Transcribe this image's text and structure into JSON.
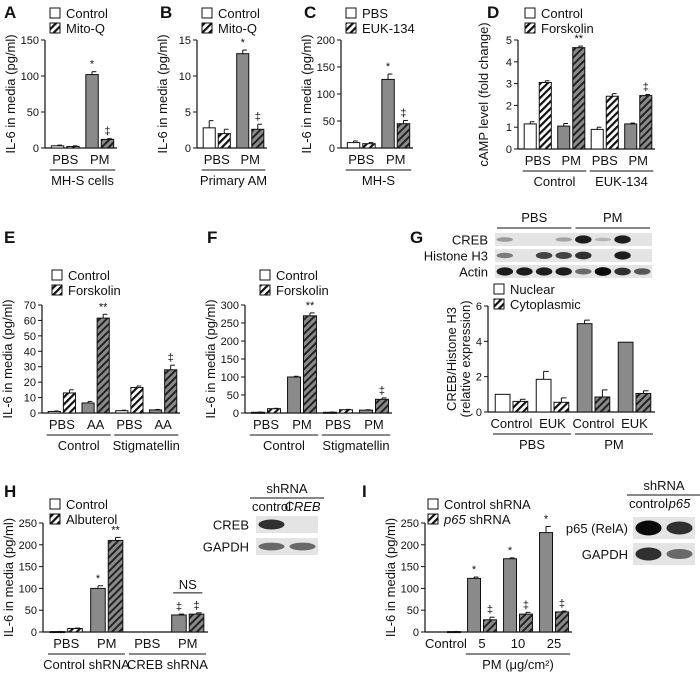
{
  "colors": {
    "gray_bar": "#8a8a8a",
    "white_bar": "#ffffff",
    "ink": "#111111"
  },
  "chart_data": [
    {
      "panel": "A",
      "type": "bar",
      "ylabel": "IL-6 in media (pg/ml)",
      "ylim": [
        0,
        150
      ],
      "yticks": [
        0,
        50,
        100,
        150
      ],
      "legend": [
        {
          "label": "Control",
          "hatch": false
        },
        {
          "label": "Mito-Q",
          "hatch": true
        }
      ],
      "categories": [
        "PBS",
        "PM"
      ],
      "groups": [
        {
          "label": "MH-S cells",
          "from": 0,
          "to": 1
        }
      ],
      "bars": [
        {
          "value": 3,
          "error": 1,
          "fill": "white",
          "hatch": false
        },
        {
          "value": 2,
          "error": 1,
          "fill": "white",
          "hatch": true
        },
        {
          "value": 102,
          "error": 4,
          "fill": "gray",
          "hatch": false,
          "mark": "*"
        },
        {
          "value": 12,
          "error": 1,
          "fill": "gray",
          "hatch": true,
          "mark": "‡"
        }
      ]
    },
    {
      "panel": "B",
      "type": "bar",
      "ylabel": "IL-6 in media (pg/ml)",
      "ylim": [
        0,
        15
      ],
      "yticks": [
        0,
        5,
        10,
        15
      ],
      "legend": [
        {
          "label": "Control",
          "hatch": false
        },
        {
          "label": "Mito-Q",
          "hatch": true
        }
      ],
      "categories": [
        "PBS",
        "PM"
      ],
      "groups": [
        {
          "label": "Primary AM",
          "from": 0,
          "to": 1
        }
      ],
      "bars": [
        {
          "value": 2.8,
          "error": 1.0,
          "fill": "white",
          "hatch": false
        },
        {
          "value": 2.0,
          "error": 0.6,
          "fill": "white",
          "hatch": true
        },
        {
          "value": 13.1,
          "error": 0.5,
          "fill": "gray",
          "hatch": false,
          "mark": "*"
        },
        {
          "value": 2.6,
          "error": 0.7,
          "fill": "gray",
          "hatch": true,
          "mark": "‡"
        }
      ]
    },
    {
      "panel": "C",
      "type": "bar",
      "ylabel": "IL-6 in media (pg/ml)",
      "ylim": [
        0,
        200
      ],
      "yticks": [
        0,
        50,
        100,
        150,
        200
      ],
      "legend": [
        {
          "label": "PBS",
          "hatch": false
        },
        {
          "label": "EUK-134",
          "hatch": true
        }
      ],
      "categories": [
        "PBS",
        "PM"
      ],
      "groups": [
        {
          "label": "MH-S",
          "from": 0,
          "to": 1
        }
      ],
      "bars": [
        {
          "value": 10,
          "error": 3,
          "fill": "white",
          "hatch": false
        },
        {
          "value": 8,
          "error": 2,
          "fill": "white",
          "hatch": true
        },
        {
          "value": 127,
          "error": 10,
          "fill": "gray",
          "hatch": false,
          "mark": "*"
        },
        {
          "value": 45,
          "error": 6,
          "fill": "gray",
          "hatch": true,
          "mark": "‡"
        }
      ]
    },
    {
      "panel": "D",
      "type": "bar",
      "ylabel": "cAMP level (fold change)",
      "ylim": [
        0,
        5
      ],
      "yticks": [
        0,
        1,
        2,
        3,
        4,
        5
      ],
      "legend": [
        {
          "label": "Control",
          "hatch": false
        },
        {
          "label": "Forskolin",
          "hatch": true
        }
      ],
      "categories": [
        "PBS",
        "PM",
        "PBS",
        "PM"
      ],
      "groups": [
        {
          "label": "Control",
          "from": 0,
          "to": 1
        },
        {
          "label": "EUK-134",
          "from": 2,
          "to": 3
        }
      ],
      "bars": [
        {
          "value": 1.15,
          "error": 0.1,
          "fill": "white",
          "hatch": false
        },
        {
          "value": 3.05,
          "error": 0.08,
          "fill": "white",
          "hatch": true
        },
        {
          "value": 1.05,
          "error": 0.12,
          "fill": "gray",
          "hatch": false
        },
        {
          "value": 4.65,
          "error": 0.07,
          "fill": "gray",
          "hatch": true,
          "mark": "**"
        },
        {
          "value": 0.9,
          "error": 0.1,
          "fill": "white",
          "hatch": false
        },
        {
          "value": 2.42,
          "error": 0.12,
          "fill": "white",
          "hatch": true
        },
        {
          "value": 1.15,
          "error": 0.04,
          "fill": "gray",
          "hatch": false
        },
        {
          "value": 2.45,
          "error": 0.05,
          "fill": "gray",
          "hatch": true,
          "mark": "‡"
        }
      ]
    },
    {
      "panel": "E",
      "type": "bar",
      "ylabel": "IL-6 in media (pg/ml)",
      "ylim": [
        0,
        70
      ],
      "yticks": [
        0,
        10,
        20,
        30,
        40,
        50,
        60,
        70
      ],
      "legend": [
        {
          "label": "Control",
          "hatch": false
        },
        {
          "label": "Forskolin",
          "hatch": true
        }
      ],
      "categories": [
        "PBS",
        "AA",
        "PBS",
        "AA"
      ],
      "groups": [
        {
          "label": "Control",
          "from": 0,
          "to": 1
        },
        {
          "label": "Stigmatellin",
          "from": 2,
          "to": 3
        }
      ],
      "bars": [
        {
          "value": 1,
          "error": 0.3,
          "fill": "white",
          "hatch": false
        },
        {
          "value": 13,
          "error": 2,
          "fill": "white",
          "hatch": true
        },
        {
          "value": 6.5,
          "error": 1,
          "fill": "gray",
          "hatch": false
        },
        {
          "value": 61.5,
          "error": 2.5,
          "fill": "gray",
          "hatch": true,
          "mark": "**"
        },
        {
          "value": 1.5,
          "error": 0.3,
          "fill": "white",
          "hatch": false
        },
        {
          "value": 16.5,
          "error": 1,
          "fill": "white",
          "hatch": true
        },
        {
          "value": 2,
          "error": 0.3,
          "fill": "gray",
          "hatch": false
        },
        {
          "value": 28,
          "error": 3,
          "fill": "gray",
          "hatch": true,
          "mark": "‡"
        }
      ]
    },
    {
      "panel": "F",
      "type": "bar",
      "ylabel": "IL-6 in media (pg/ml)",
      "ylim": [
        0,
        300
      ],
      "yticks": [
        0,
        50,
        100,
        150,
        200,
        250,
        300
      ],
      "legend": [
        {
          "label": "Control",
          "hatch": false
        },
        {
          "label": "Forskolin",
          "hatch": true
        }
      ],
      "categories": [
        "PBS",
        "PM",
        "PBS",
        "PM"
      ],
      "groups": [
        {
          "label": "Control",
          "from": 0,
          "to": 1
        },
        {
          "label": "Stigmatellin",
          "from": 2,
          "to": 3
        }
      ],
      "bars": [
        {
          "value": 2,
          "error": 0.5,
          "fill": "white",
          "hatch": false
        },
        {
          "value": 12,
          "error": 1,
          "fill": "white",
          "hatch": true
        },
        {
          "value": 100,
          "error": 2,
          "fill": "gray",
          "hatch": false
        },
        {
          "value": 270,
          "error": 8,
          "fill": "gray",
          "hatch": true,
          "mark": "**"
        },
        {
          "value": 2,
          "error": 0.5,
          "fill": "white",
          "hatch": false
        },
        {
          "value": 9,
          "error": 1,
          "fill": "white",
          "hatch": true
        },
        {
          "value": 8,
          "error": 1,
          "fill": "gray",
          "hatch": false
        },
        {
          "value": 38,
          "error": 4,
          "fill": "gray",
          "hatch": true,
          "mark": "‡"
        }
      ]
    },
    {
      "panel": "G",
      "type": "bar",
      "ylabel": "CREB/Histone H3 (relative expression)",
      "ylim": [
        0,
        6
      ],
      "yticks": [
        0,
        2,
        4,
        6
      ],
      "legend": [
        {
          "label": "Nuclear",
          "hatch": false
        },
        {
          "label": "Cytoplasmic",
          "hatch": true
        }
      ],
      "categories": [
        "Control",
        "EUK",
        "Control",
        "EUK"
      ],
      "groups": [
        {
          "label": "PBS",
          "from": 0,
          "to": 1
        },
        {
          "label": "PM",
          "from": 2,
          "to": 3
        }
      ],
      "bars": [
        {
          "value": 1.0,
          "error": 0,
          "fill": "white",
          "hatch": false
        },
        {
          "value": 0.6,
          "error": 0.12,
          "fill": "white",
          "hatch": true
        },
        {
          "value": 1.85,
          "error": 0.45,
          "fill": "white",
          "hatch": false
        },
        {
          "value": 0.55,
          "error": 0.25,
          "fill": "white",
          "hatch": true
        },
        {
          "value": 5.0,
          "error": 0.2,
          "fill": "gray",
          "hatch": false
        },
        {
          "value": 0.85,
          "error": 0.4,
          "fill": "gray",
          "hatch": true
        },
        {
          "value": 3.95,
          "error": 0,
          "fill": "gray",
          "hatch": false
        },
        {
          "value": 1.05,
          "error": 0.15,
          "fill": "gray",
          "hatch": true
        }
      ]
    },
    {
      "panel": "H",
      "type": "bar",
      "ylabel": "IL-6 in media (pg/ml)",
      "ylim": [
        0,
        250
      ],
      "yticks": [
        0,
        50,
        100,
        150,
        200,
        250
      ],
      "legend": [
        {
          "label": "Control",
          "hatch": false
        },
        {
          "label": "Albuterol",
          "hatch": true
        }
      ],
      "categories": [
        "PBS",
        "PM",
        "PBS",
        "PM"
      ],
      "groups": [
        {
          "label": "Control shRNA",
          "from": 0,
          "to": 1
        },
        {
          "label": "CREB shRNA",
          "from": 2,
          "to": 3
        }
      ],
      "annotations": [
        {
          "text": "NS",
          "pair": 3
        }
      ],
      "bars": [
        {
          "value": 1,
          "error": 0.3,
          "fill": "white",
          "hatch": false
        },
        {
          "value": 8,
          "error": 1,
          "fill": "white",
          "hatch": true
        },
        {
          "value": 100,
          "error": 6,
          "fill": "gray",
          "hatch": false,
          "mark": "*"
        },
        {
          "value": 210,
          "error": 7,
          "fill": "gray",
          "hatch": true,
          "mark": "**"
        },
        {
          "value": 0,
          "error": 0,
          "fill": "white",
          "hatch": false
        },
        {
          "value": 0,
          "error": 0,
          "fill": "white",
          "hatch": true
        },
        {
          "value": 39,
          "error": 2,
          "fill": "gray",
          "hatch": false,
          "mark": "‡"
        },
        {
          "value": 41,
          "error": 3,
          "fill": "gray",
          "hatch": true,
          "mark": "‡"
        }
      ]
    },
    {
      "panel": "I",
      "type": "bar",
      "ylabel": "IL-6 in media (pg/ml)",
      "ylim": [
        0,
        250
      ],
      "yticks": [
        0,
        50,
        100,
        150,
        200,
        250
      ],
      "legend": [
        {
          "label": "Control shRNA",
          "hatch": false
        },
        {
          "label": "p65 shRNA",
          "hatch": true,
          "italic_prefix": "p65"
        }
      ],
      "categories": [
        "Control",
        "5",
        "10",
        "25"
      ],
      "groups": [
        {
          "label": "PM (μg/cm²)",
          "from": 1,
          "to": 3
        }
      ],
      "bars": [
        {
          "value": 0,
          "error": 0,
          "fill": "gray",
          "hatch": false
        },
        {
          "value": 1,
          "error": 0.3,
          "fill": "gray",
          "hatch": true
        },
        {
          "value": 123,
          "error": 3,
          "fill": "gray",
          "hatch": false,
          "mark": "*"
        },
        {
          "value": 28,
          "error": 6,
          "fill": "gray",
          "hatch": true,
          "mark": "‡"
        },
        {
          "value": 168,
          "error": 2,
          "fill": "gray",
          "hatch": false,
          "mark": "*"
        },
        {
          "value": 41,
          "error": 4,
          "fill": "gray",
          "hatch": true,
          "mark": "‡"
        },
        {
          "value": 228,
          "error": 14,
          "fill": "gray",
          "hatch": false,
          "mark": "*"
        },
        {
          "value": 46,
          "error": 2,
          "fill": "gray",
          "hatch": true,
          "mark": "‡"
        }
      ]
    }
  ],
  "blots": [
    {
      "panel": "G",
      "header": [
        {
          "label": "PBS",
          "lanes": [
            0,
            3
          ]
        },
        {
          "label": "PM",
          "lanes": [
            4,
            7
          ]
        }
      ],
      "lanes": 8,
      "rows": [
        {
          "label": "CREB",
          "intensity": [
            0.25,
            0,
            0,
            0.2,
            0.9,
            0.1,
            0.9,
            0
          ]
        },
        {
          "label": "Histone H3",
          "intensity": [
            0.4,
            0,
            0.7,
            0.7,
            0.8,
            0,
            0.9,
            0
          ]
        },
        {
          "label": "Actin",
          "intensity": [
            0.9,
            0.9,
            0.9,
            0.9,
            0.5,
            1,
            0.8,
            0.6
          ]
        }
      ]
    },
    {
      "panel": "H",
      "title": "shRNA",
      "lane_labels": [
        {
          "text": "control",
          "italic": false
        },
        {
          "text": "CREB",
          "italic": true
        }
      ],
      "lanes": 2,
      "rows": [
        {
          "label": "CREB",
          "intensity": [
            0.8,
            0
          ]
        },
        {
          "label": "GAPDH",
          "intensity": [
            0.5,
            0.5
          ]
        }
      ]
    },
    {
      "panel": "I",
      "title": "shRNA",
      "lane_labels": [
        {
          "text": "control",
          "italic": false
        },
        {
          "text": "p65",
          "italic": true
        }
      ],
      "lanes": 2,
      "rows": [
        {
          "label": "p65 (RelA)",
          "intensity": [
            1,
            0.8
          ]
        },
        {
          "label": "GAPDH",
          "intensity": [
            0.8,
            0.5
          ]
        }
      ]
    }
  ]
}
